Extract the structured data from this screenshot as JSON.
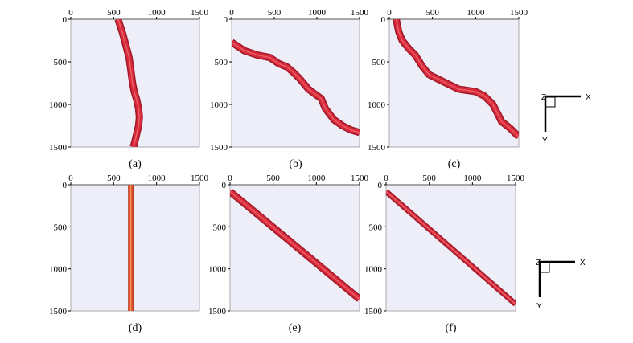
{
  "figure": {
    "xaxis_ticks": [
      "0",
      "500",
      "1000",
      "1500"
    ],
    "yaxis_ticks": [
      "0",
      "500",
      "1000",
      "1500"
    ],
    "triad_top": {
      "z": "Z",
      "x": "X",
      "y": "Y"
    },
    "triad_bottom": {
      "z": "Z",
      "x": "X",
      "y": "Y"
    },
    "colors": {
      "plot_bg": "#eeeef8",
      "curve": "#d92a3c",
      "curve_light": "#ef6a72",
      "curve_dark": "#9e1a28",
      "rod": "#dd4a1a",
      "rod_dark": "#b3321a",
      "frame": "#aaaaaa"
    }
  },
  "chart_data": [
    {
      "type": "line",
      "label": "(a)",
      "xlim": [
        0,
        1500
      ],
      "ylim": [
        0,
        1500
      ],
      "x_ticks": [
        0,
        500,
        1000,
        1500
      ],
      "y_ticks": [
        0,
        500,
        1000,
        1500
      ],
      "x": [
        550,
        600,
        640,
        680,
        700,
        720,
        740,
        770,
        790,
        800,
        790,
        760,
        730
      ],
      "y": [
        0,
        150,
        300,
        450,
        600,
        750,
        850,
        950,
        1050,
        1150,
        1250,
        1380,
        1500
      ],
      "style": "tube"
    },
    {
      "type": "line",
      "label": "(b)",
      "xlim": [
        0,
        1500
      ],
      "ylim": [
        0,
        1500
      ],
      "x_ticks": [
        0,
        500,
        1000,
        1500
      ],
      "y_ticks": [
        0,
        500,
        1000,
        1500
      ],
      "x": [
        0,
        150,
        300,
        450,
        550,
        650,
        720,
        800,
        900,
        980,
        1050,
        1100,
        1200,
        1300,
        1400,
        1500
      ],
      "y": [
        270,
        370,
        420,
        450,
        520,
        560,
        620,
        700,
        820,
        880,
        930,
        1050,
        1180,
        1250,
        1300,
        1330
      ],
      "style": "tube"
    },
    {
      "type": "line",
      "label": "(c)",
      "xlim": [
        0,
        1500
      ],
      "ylim": [
        0,
        1500
      ],
      "x_ticks": [
        0,
        500,
        1000,
        1500
      ],
      "y_ticks": [
        0,
        500,
        1000,
        1500
      ],
      "x": [
        80,
        110,
        150,
        230,
        300,
        380,
        460,
        600,
        800,
        1000,
        1100,
        1200,
        1250,
        1300,
        1400,
        1500
      ],
      "y": [
        0,
        150,
        250,
        350,
        420,
        550,
        650,
        720,
        820,
        850,
        900,
        1000,
        1100,
        1200,
        1280,
        1380
      ],
      "style": "tube"
    },
    {
      "type": "line",
      "label": "(d)",
      "xlim": [
        0,
        1500
      ],
      "ylim": [
        0,
        1500
      ],
      "x_ticks": [
        0,
        500,
        1000,
        1500
      ],
      "y_ticks": [
        0,
        500,
        1000,
        1500
      ],
      "x": [
        700,
        700
      ],
      "y": [
        0,
        1500
      ],
      "style": "rod"
    },
    {
      "type": "line",
      "label": "(e)",
      "xlim": [
        0,
        1500
      ],
      "ylim": [
        0,
        1500
      ],
      "x_ticks": [
        0,
        500,
        1000,
        1500
      ],
      "y_ticks": [
        0,
        500,
        1000,
        1500
      ],
      "x": [
        0,
        1500
      ],
      "y": [
        80,
        1360
      ],
      "style": "tube"
    },
    {
      "type": "line",
      "label": "(f)",
      "xlim": [
        0,
        1500
      ],
      "ylim": [
        0,
        1500
      ],
      "x_ticks": [
        0,
        500,
        1000,
        1500
      ],
      "y_ticks": [
        0,
        500,
        1000,
        1500
      ],
      "x": [
        0,
        1500
      ],
      "y": [
        80,
        1420
      ],
      "style": "tube_thin"
    }
  ]
}
